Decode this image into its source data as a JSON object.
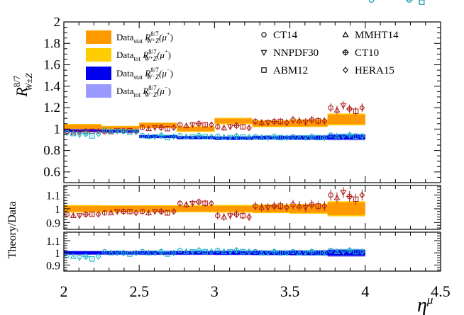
{
  "chart_data": {
    "type": "line",
    "xlabel": "η",
    "xlabel_sup": "μ",
    "xlim": [
      2,
      4.5
    ],
    "x_ticks": [
      "2",
      "2.5",
      "3",
      "3.5",
      "4",
      "4.5"
    ],
    "x_tick_values": [
      2,
      2.5,
      3,
      3.5,
      4,
      4.5
    ],
    "bins": [
      2.0,
      2.25,
      2.5,
      2.75,
      3.0,
      3.25,
      3.5,
      3.75,
      4.0,
      4.5
    ],
    "panels": [
      {
        "name": "main",
        "ylabel_main": "R",
        "ylabel_sup": "8/7",
        "ylabel_sub": "W±Z",
        "ylim": [
          0.5,
          2.0
        ],
        "y_ticks": [
          "0.6",
          "0.8",
          "1",
          "1.2",
          "1.4",
          "1.6",
          "1.8",
          "2"
        ],
        "y_tick_values": [
          0.6,
          0.8,
          1.0,
          1.2,
          1.4,
          1.6,
          1.8,
          2.0
        ],
        "plus_values": [
          1.02,
          1.005,
          1.035,
          1.0,
          1.075,
          1.05,
          1.055,
          1.09
        ],
        "plus_stat_err": [
          0.022,
          0.02,
          0.02,
          0.02,
          0.022,
          0.025,
          0.03,
          0.045
        ],
        "plus_tot_err": [
          0.028,
          0.025,
          0.026,
          0.026,
          0.03,
          0.032,
          0.036,
          0.055
        ],
        "minus_values": [
          0.985,
          0.98,
          0.93,
          0.92,
          0.915,
          0.92,
          0.92,
          0.925
        ],
        "minus_stat_err": [
          0.012,
          0.012,
          0.013,
          0.013,
          0.014,
          0.015,
          0.018,
          0.022
        ],
        "minus_tot_err": [
          0.016,
          0.016,
          0.016,
          0.017,
          0.018,
          0.02,
          0.022,
          0.03
        ]
      },
      {
        "name": "ratio-plus",
        "ylabel": "Theory/Data",
        "ylim": [
          0.85,
          1.17
        ],
        "y_ticks": [
          "0.9",
          "1",
          "1.1"
        ],
        "y_tick_values": [
          0.9,
          1.0,
          1.1
        ],
        "stat_err": [
          0.02,
          0.02,
          0.02,
          0.02,
          0.02,
          0.025,
          0.03,
          0.045
        ],
        "tot_err": [
          0.027,
          0.025,
          0.026,
          0.026,
          0.028,
          0.032,
          0.036,
          0.055
        ]
      },
      {
        "name": "ratio-minus",
        "ylim": [
          0.85,
          1.17
        ],
        "y_ticks": [
          "0.9",
          "1",
          "1.1"
        ],
        "y_tick_values": [
          0.9,
          1.0,
          1.1
        ],
        "stat_err": [
          0.013,
          0.013,
          0.014,
          0.014,
          0.015,
          0.016,
          0.018,
          0.024
        ],
        "tot_err": [
          0.017,
          0.017,
          0.018,
          0.018,
          0.019,
          0.021,
          0.023,
          0.032
        ]
      }
    ],
    "legend": {
      "bands": [
        {
          "base": "Data",
          "sub": "stat",
          "charge": "μ⁺",
          "color": "#FF9900"
        },
        {
          "base": "Data",
          "sub": "tot",
          "charge": "μ⁺",
          "color": "#FFCC00"
        },
        {
          "base": "Data",
          "sub": "stat",
          "charge": "μ⁻",
          "color": "#0000EE"
        },
        {
          "base": "Data",
          "sub": "tot",
          "charge": "μ⁻",
          "color": "#9999FF"
        }
      ],
      "band_symbol": "R",
      "band_sup": "8/7",
      "band_sub": "W⁺Z",
      "band_sub_minus": "W⁻Z",
      "pdfs": [
        {
          "name": "CT14",
          "marker": "circle"
        },
        {
          "name": "MMHT14",
          "marker": "triangle-up"
        },
        {
          "name": "NNPDF30",
          "marker": "triangle-down"
        },
        {
          "name": "CT10",
          "marker": "cross-circle"
        },
        {
          "name": "ABM12",
          "marker": "square"
        },
        {
          "name": "HERA15",
          "marker": "diamond"
        }
      ]
    },
    "theory_series": [
      {
        "name": "CT14",
        "marker": "circle",
        "plus_ratio": [
          0.96,
          0.97,
          0.98,
          1.04,
          0.95,
          1.02,
          1.03,
          1.1
        ],
        "minus_ratio": [
          0.98,
          1.01,
          1.01,
          1.02,
          1.02,
          1.01,
          1.01,
          1.02
        ]
      },
      {
        "name": "MMHT14",
        "marker": "triangle-up",
        "plus_ratio": [
          0.95,
          0.97,
          0.97,
          1.03,
          0.94,
          1.01,
          1.02,
          1.08
        ],
        "minus_ratio": [
          0.97,
          1.0,
          1.0,
          1.01,
          1.01,
          1.0,
          1.0,
          1.01
        ]
      },
      {
        "name": "NNPDF30",
        "marker": "triangle-down",
        "plus_ratio": [
          0.95,
          0.98,
          0.98,
          1.04,
          0.95,
          1.01,
          1.01,
          1.12
        ],
        "minus_ratio": [
          0.96,
          1.0,
          1.0,
          1.01,
          1.01,
          1.0,
          1.0,
          1.01
        ]
      },
      {
        "name": "CT10",
        "marker": "cross-circle",
        "plus_ratio": [
          0.96,
          0.98,
          0.98,
          1.05,
          0.96,
          1.02,
          1.03,
          1.09
        ],
        "minus_ratio": [
          0.97,
          1.0,
          1.01,
          1.02,
          1.02,
          1.01,
          1.01,
          1.02
        ]
      },
      {
        "name": "ABM12",
        "marker": "square",
        "plus_ratio": [
          0.96,
          0.98,
          0.97,
          1.04,
          0.95,
          1.02,
          1.02,
          1.07
        ],
        "minus_ratio": [
          0.95,
          0.99,
          0.99,
          1.01,
          1.01,
          1.0,
          1.0,
          1.01
        ]
      },
      {
        "name": "HERA15",
        "marker": "diamond",
        "plus_ratio": [
          0.96,
          0.97,
          0.98,
          1.04,
          0.94,
          1.01,
          1.02,
          1.1
        ],
        "minus_ratio": [
          0.97,
          1.0,
          1.0,
          1.01,
          1.01,
          1.0,
          1.0,
          1.01
        ]
      }
    ]
  }
}
